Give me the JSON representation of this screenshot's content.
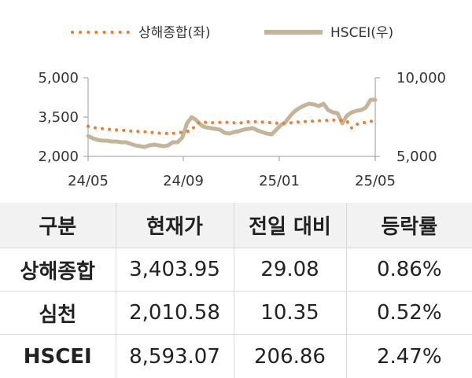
{
  "chart_data": {
    "type": "line",
    "x_ticks": [
      "24/05",
      "24/09",
      "25/01",
      "25/05"
    ],
    "y_left": {
      "ticks": [
        "5,000",
        "3,500",
        "2,000"
      ],
      "range": [
        2000,
        5000
      ]
    },
    "y_right": {
      "ticks": [
        "10,000",
        "5,000"
      ],
      "range": [
        5000,
        10000
      ]
    },
    "colors": {
      "shanghai": "#ed7d31",
      "hscei": "#c4b49a"
    },
    "series": [
      {
        "name": "상해종합(좌)",
        "axis": "left",
        "style": "dotted",
        "x": [
          0,
          0.2,
          0.4,
          0.6,
          0.8,
          1.0,
          1.2,
          1.4,
          1.6,
          1.8,
          2.0,
          2.2,
          2.4,
          2.6,
          2.8,
          3.0,
          3.2,
          3.4,
          3.6,
          3.8,
          4.0,
          4.2,
          4.4,
          4.6,
          4.8,
          5.0,
          5.2,
          5.4,
          5.6,
          5.8,
          6.0,
          6.2,
          6.4,
          6.6,
          6.8,
          7.0,
          7.2,
          7.4,
          7.6,
          7.8,
          8.0,
          8.2,
          8.4,
          8.6,
          8.8,
          9.0,
          9.2,
          9.4,
          9.6,
          9.8,
          10.0,
          10.2,
          10.4,
          10.6,
          10.8,
          11.0,
          11.2,
          11.4,
          11.6,
          11.8,
          12.0,
          12.2
        ],
        "y": [
          3150,
          3110,
          3070,
          3060,
          3040,
          3020,
          3010,
          3000,
          2990,
          2970,
          2960,
          2950,
          2940,
          2920,
          2910,
          2890,
          2880,
          2870,
          2880,
          2900,
          2920,
          2950,
          3000,
          3240,
          3320,
          3300,
          3280,
          3290,
          3300,
          3310,
          3290,
          3280,
          3260,
          3300,
          3320,
          3330,
          3320,
          3310,
          3300,
          3280,
          3270,
          3260,
          3250,
          3280,
          3300,
          3320,
          3330,
          3340,
          3350,
          3360,
          3370,
          3380,
          3390,
          3380,
          3370,
          3350,
          3080,
          3220,
          3270,
          3300,
          3330,
          3400
        ]
      },
      {
        "name": "HSCEI(우)",
        "axis": "right",
        "style": "solid",
        "x": [
          0,
          0.2,
          0.4,
          0.6,
          0.8,
          1.0,
          1.2,
          1.4,
          1.6,
          1.8,
          2.0,
          2.2,
          2.4,
          2.6,
          2.8,
          3.0,
          3.2,
          3.4,
          3.6,
          3.8,
          4.0,
          4.2,
          4.4,
          4.6,
          4.8,
          4.9,
          5.0,
          5.2,
          5.4,
          5.6,
          5.8,
          6.0,
          6.2,
          6.4,
          6.6,
          6.8,
          7.0,
          7.2,
          7.4,
          7.6,
          7.8,
          8.0,
          8.2,
          8.4,
          8.6,
          8.8,
          9.0,
          9.2,
          9.4,
          9.6,
          9.8,
          10.0,
          10.2,
          10.4,
          10.6,
          10.8,
          11.0,
          11.2,
          11.4,
          11.6,
          11.8,
          12.0,
          12.2
        ],
        "y": [
          6300,
          6150,
          6050,
          6000,
          6000,
          5950,
          5950,
          5900,
          5900,
          5800,
          5700,
          5650,
          5600,
          5700,
          5750,
          5700,
          5650,
          5700,
          5900,
          5900,
          6200,
          7100,
          7500,
          7300,
          7000,
          6900,
          6850,
          6800,
          6750,
          6700,
          6500,
          6450,
          6550,
          6600,
          6700,
          6750,
          6800,
          6650,
          6550,
          6450,
          6400,
          6700,
          7000,
          7200,
          7600,
          7900,
          8100,
          8250,
          8350,
          8300,
          8200,
          8350,
          7950,
          7800,
          7750,
          7100,
          7600,
          7800,
          7900,
          7950,
          8100,
          8600,
          8600
        ]
      }
    ]
  },
  "table": {
    "headers": [
      "구분",
      "현재가",
      "전일 대비",
      "등락률"
    ],
    "rows": [
      {
        "name": "상해종합",
        "price": "3,403.95",
        "change": "29.08",
        "rate": "0.86%"
      },
      {
        "name": "심천",
        "price": "2,010.58",
        "change": "10.35",
        "rate": "0.52%"
      },
      {
        "name": "HSCEI",
        "price": "8,593.07",
        "change": "206.86",
        "rate": "2.47%"
      }
    ]
  }
}
